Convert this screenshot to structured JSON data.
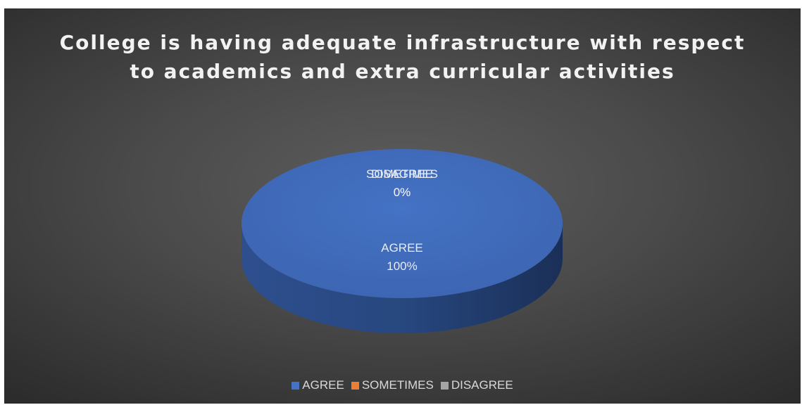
{
  "chart_data": {
    "type": "pie",
    "title": "College is having adequate infrastructure with respect to academics and extra curricular activities",
    "categories": [
      "AGREE",
      "SOMETIMES",
      "DISAGREE"
    ],
    "values": [
      100,
      0,
      0
    ],
    "labels": [
      {
        "category": "AGREE",
        "percent": "100%"
      },
      {
        "category": "SOMETIMES",
        "percent": "0%"
      },
      {
        "category": "DISAGREE",
        "percent": "0%"
      }
    ],
    "colors": [
      "#4472c4",
      "#ed7d31",
      "#a5a5a5"
    ],
    "legend_placement": "bottom",
    "style": "3d"
  }
}
